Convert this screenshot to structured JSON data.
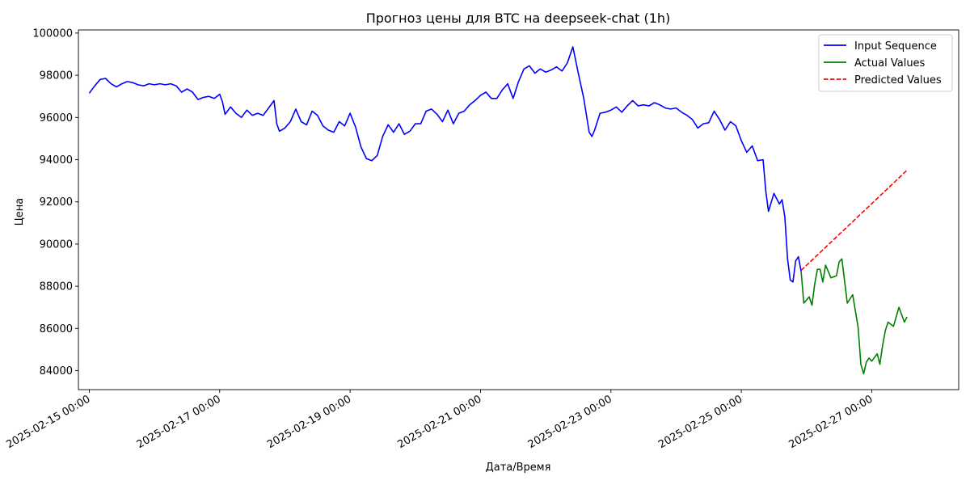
{
  "chart_data": {
    "type": "line",
    "title": "Прогноз цены для BTC на deepseek-chat (1h)",
    "xlabel": "Дата/Время",
    "ylabel": "Цена",
    "x_range": [
      "2025-02-14 20:00",
      "2025-02-28 08:00"
    ],
    "ylim": [
      83100,
      100150
    ],
    "yticks": [
      84000,
      86000,
      88000,
      90000,
      92000,
      94000,
      96000,
      98000,
      100000
    ],
    "xticks": [
      "2025-02-15 00:00",
      "2025-02-17 00:00",
      "2025-02-19 00:00",
      "2025-02-21 00:00",
      "2025-02-23 00:00",
      "2025-02-25 00:00",
      "2025-02-27 00:00"
    ],
    "legend_position": "top-right",
    "grid": false,
    "series": [
      {
        "name": "Input Sequence",
        "color": "#0000ff",
        "style": "solid",
        "points": [
          [
            "2025-02-15 00:00",
            97150
          ],
          [
            "2025-02-15 02:00",
            97500
          ],
          [
            "2025-02-15 04:00",
            97800
          ],
          [
            "2025-02-15 06:00",
            97850
          ],
          [
            "2025-02-15 08:00",
            97600
          ],
          [
            "2025-02-15 10:00",
            97450
          ],
          [
            "2025-02-15 12:00",
            97600
          ],
          [
            "2025-02-15 14:00",
            97700
          ],
          [
            "2025-02-15 16:00",
            97650
          ],
          [
            "2025-02-15 18:00",
            97550
          ],
          [
            "2025-02-15 20:00",
            97500
          ],
          [
            "2025-02-15 22:00",
            97600
          ],
          [
            "2025-02-16 00:00",
            97550
          ],
          [
            "2025-02-16 02:00",
            97600
          ],
          [
            "2025-02-16 04:00",
            97550
          ],
          [
            "2025-02-16 06:00",
            97600
          ],
          [
            "2025-02-16 08:00",
            97500
          ],
          [
            "2025-02-16 10:00",
            97200
          ],
          [
            "2025-02-16 12:00",
            97350
          ],
          [
            "2025-02-16 14:00",
            97200
          ],
          [
            "2025-02-16 16:00",
            96850
          ],
          [
            "2025-02-16 18:00",
            96950
          ],
          [
            "2025-02-16 20:00",
            97000
          ],
          [
            "2025-02-16 22:00",
            96900
          ],
          [
            "2025-02-17 00:00",
            97100
          ],
          [
            "2025-02-17 01:00",
            96750
          ],
          [
            "2025-02-17 02:00",
            96150
          ],
          [
            "2025-02-17 04:00",
            96500
          ],
          [
            "2025-02-17 06:00",
            96200
          ],
          [
            "2025-02-17 08:00",
            96000
          ],
          [
            "2025-02-17 10:00",
            96350
          ],
          [
            "2025-02-17 12:00",
            96100
          ],
          [
            "2025-02-17 14:00",
            96200
          ],
          [
            "2025-02-17 16:00",
            96100
          ],
          [
            "2025-02-17 18:00",
            96450
          ],
          [
            "2025-02-17 20:00",
            96800
          ],
          [
            "2025-02-17 21:00",
            95700
          ],
          [
            "2025-02-17 22:00",
            95350
          ],
          [
            "2025-02-18 00:00",
            95500
          ],
          [
            "2025-02-18 02:00",
            95800
          ],
          [
            "2025-02-18 04:00",
            96400
          ],
          [
            "2025-02-18 06:00",
            95800
          ],
          [
            "2025-02-18 08:00",
            95650
          ],
          [
            "2025-02-18 10:00",
            96300
          ],
          [
            "2025-02-18 12:00",
            96100
          ],
          [
            "2025-02-18 14:00",
            95600
          ],
          [
            "2025-02-18 16:00",
            95400
          ],
          [
            "2025-02-18 18:00",
            95300
          ],
          [
            "2025-02-18 20:00",
            95800
          ],
          [
            "2025-02-18 22:00",
            95600
          ],
          [
            "2025-02-19 00:00",
            96200
          ],
          [
            "2025-02-19 02:00",
            95550
          ],
          [
            "2025-02-19 04:00",
            94600
          ],
          [
            "2025-02-19 06:00",
            94050
          ],
          [
            "2025-02-19 08:00",
            93950
          ],
          [
            "2025-02-19 10:00",
            94200
          ],
          [
            "2025-02-19 12:00",
            95100
          ],
          [
            "2025-02-19 14:00",
            95650
          ],
          [
            "2025-02-19 16:00",
            95300
          ],
          [
            "2025-02-19 18:00",
            95700
          ],
          [
            "2025-02-19 20:00",
            95200
          ],
          [
            "2025-02-19 22:00",
            95350
          ],
          [
            "2025-02-20 00:00",
            95700
          ],
          [
            "2025-02-20 02:00",
            95700
          ],
          [
            "2025-02-20 04:00",
            96300
          ],
          [
            "2025-02-20 06:00",
            96400
          ],
          [
            "2025-02-20 08:00",
            96150
          ],
          [
            "2025-02-20 10:00",
            95800
          ],
          [
            "2025-02-20 12:00",
            96350
          ],
          [
            "2025-02-20 14:00",
            95700
          ],
          [
            "2025-02-20 16:00",
            96200
          ],
          [
            "2025-02-20 18:00",
            96300
          ],
          [
            "2025-02-20 20:00",
            96600
          ],
          [
            "2025-02-20 22:00",
            96800
          ],
          [
            "2025-02-21 00:00",
            97050
          ],
          [
            "2025-02-21 02:00",
            97200
          ],
          [
            "2025-02-21 04:00",
            96900
          ],
          [
            "2025-02-21 06:00",
            96900
          ],
          [
            "2025-02-21 08:00",
            97300
          ],
          [
            "2025-02-21 10:00",
            97600
          ],
          [
            "2025-02-21 12:00",
            96900
          ],
          [
            "2025-02-21 14:00",
            97700
          ],
          [
            "2025-02-21 16:00",
            98300
          ],
          [
            "2025-02-21 18:00",
            98450
          ],
          [
            "2025-02-21 20:00",
            98100
          ],
          [
            "2025-02-21 22:00",
            98300
          ],
          [
            "2025-02-22 00:00",
            98150
          ],
          [
            "2025-02-22 02:00",
            98250
          ],
          [
            "2025-02-22 04:00",
            98400
          ],
          [
            "2025-02-22 06:00",
            98200
          ],
          [
            "2025-02-22 08:00",
            98600
          ],
          [
            "2025-02-22 10:00",
            99350
          ],
          [
            "2025-02-22 12:00",
            98100
          ],
          [
            "2025-02-22 14:00",
            96900
          ],
          [
            "2025-02-22 16:00",
            95300
          ],
          [
            "2025-02-22 17:00",
            95100
          ],
          [
            "2025-02-22 18:00",
            95400
          ],
          [
            "2025-02-22 20:00",
            96200
          ],
          [
            "2025-02-22 22:00",
            96250
          ],
          [
            "2025-02-23 00:00",
            96350
          ],
          [
            "2025-02-23 02:00",
            96500
          ],
          [
            "2025-02-23 04:00",
            96250
          ],
          [
            "2025-02-23 06:00",
            96550
          ],
          [
            "2025-02-23 08:00",
            96800
          ],
          [
            "2025-02-23 10:00",
            96550
          ],
          [
            "2025-02-23 12:00",
            96600
          ],
          [
            "2025-02-23 14:00",
            96550
          ],
          [
            "2025-02-23 16:00",
            96700
          ],
          [
            "2025-02-23 18:00",
            96600
          ],
          [
            "2025-02-23 20:00",
            96450
          ],
          [
            "2025-02-23 22:00",
            96400
          ],
          [
            "2025-02-24 00:00",
            96450
          ],
          [
            "2025-02-24 02:00",
            96250
          ],
          [
            "2025-02-24 04:00",
            96100
          ],
          [
            "2025-02-24 06:00",
            95900
          ],
          [
            "2025-02-24 08:00",
            95500
          ],
          [
            "2025-02-24 10:00",
            95700
          ],
          [
            "2025-02-24 12:00",
            95750
          ],
          [
            "2025-02-24 14:00",
            96300
          ],
          [
            "2025-02-24 16:00",
            95900
          ],
          [
            "2025-02-24 18:00",
            95400
          ],
          [
            "2025-02-24 20:00",
            95800
          ],
          [
            "2025-02-24 22:00",
            95600
          ],
          [
            "2025-02-25 00:00",
            94900
          ],
          [
            "2025-02-25 02:00",
            94350
          ],
          [
            "2025-02-25 04:00",
            94650
          ],
          [
            "2025-02-25 06:00",
            93950
          ],
          [
            "2025-02-25 08:00",
            94000
          ],
          [
            "2025-02-25 09:00",
            92500
          ],
          [
            "2025-02-25 10:00",
            91550
          ],
          [
            "2025-02-25 12:00",
            92400
          ],
          [
            "2025-02-25 14:00",
            91900
          ],
          [
            "2025-02-25 15:00",
            92100
          ],
          [
            "2025-02-25 16:00",
            91300
          ],
          [
            "2025-02-25 17:00",
            89300
          ],
          [
            "2025-02-25 18:00",
            88300
          ],
          [
            "2025-02-25 19:00",
            88200
          ],
          [
            "2025-02-25 20:00",
            89200
          ],
          [
            "2025-02-25 21:00",
            89400
          ],
          [
            "2025-02-25 22:00",
            88700
          ]
        ]
      },
      {
        "name": "Actual Values",
        "color": "#008000",
        "style": "solid",
        "points": [
          [
            "2025-02-25 22:00",
            88700
          ],
          [
            "2025-02-25 23:00",
            87200
          ],
          [
            "2025-02-26 01:00",
            87500
          ],
          [
            "2025-02-26 02:00",
            87100
          ],
          [
            "2025-02-26 03:00",
            88100
          ],
          [
            "2025-02-26 04:00",
            88800
          ],
          [
            "2025-02-26 05:00",
            88800
          ],
          [
            "2025-02-26 06:00",
            88200
          ],
          [
            "2025-02-26 07:00",
            89000
          ],
          [
            "2025-02-26 09:00",
            88400
          ],
          [
            "2025-02-26 11:00",
            88500
          ],
          [
            "2025-02-26 12:00",
            89150
          ],
          [
            "2025-02-26 13:00",
            89300
          ],
          [
            "2025-02-26 15:00",
            87200
          ],
          [
            "2025-02-26 17:00",
            87600
          ],
          [
            "2025-02-26 19:00",
            86050
          ],
          [
            "2025-02-26 20:00",
            84300
          ],
          [
            "2025-02-26 21:00",
            83850
          ],
          [
            "2025-02-26 22:00",
            84400
          ],
          [
            "2025-02-26 23:00",
            84600
          ],
          [
            "2025-02-27 00:00",
            84450
          ],
          [
            "2025-02-27 02:00",
            84800
          ],
          [
            "2025-02-27 03:00",
            84300
          ],
          [
            "2025-02-27 04:00",
            85200
          ],
          [
            "2025-02-27 05:00",
            85900
          ],
          [
            "2025-02-27 06:00",
            86300
          ],
          [
            "2025-02-27 08:00",
            86100
          ],
          [
            "2025-02-27 10:00",
            87000
          ],
          [
            "2025-02-27 12:00",
            86300
          ],
          [
            "2025-02-27 13:00",
            86550
          ]
        ]
      },
      {
        "name": "Predicted Values",
        "color": "#ff0000",
        "style": "dashed",
        "points": [
          [
            "2025-02-25 22:00",
            88750
          ],
          [
            "2025-02-27 13:00",
            93500
          ]
        ]
      }
    ]
  }
}
